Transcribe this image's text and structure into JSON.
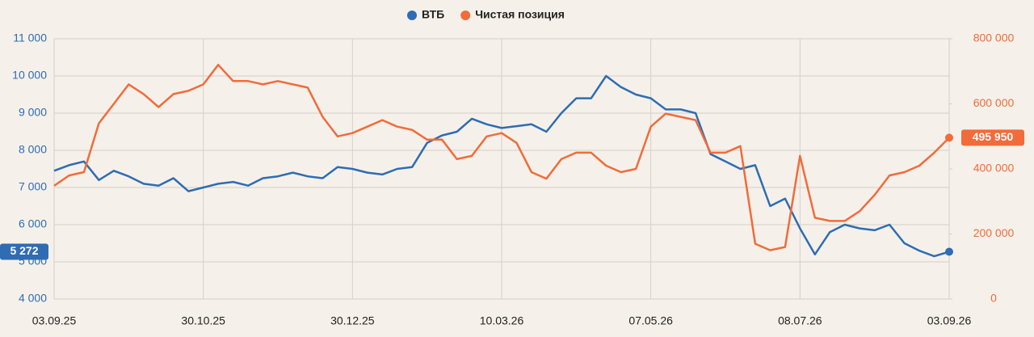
{
  "chart_data": {
    "type": "line",
    "legend": "top",
    "grid": true,
    "categories": [
      "03.09.25",
      null,
      null,
      null,
      null,
      null,
      null,
      null,
      null,
      null,
      "30.10.25",
      null,
      null,
      null,
      null,
      null,
      null,
      null,
      null,
      null,
      "30.12.25",
      null,
      null,
      null,
      null,
      null,
      null,
      null,
      null,
      null,
      "10.03.26",
      null,
      null,
      null,
      null,
      null,
      null,
      null,
      null,
      null,
      "07.05.26",
      null,
      null,
      null,
      null,
      null,
      null,
      null,
      null,
      null,
      "08.07.26",
      null,
      null,
      null,
      null,
      null,
      null,
      null,
      null,
      null,
      "03.09.26"
    ],
    "ylim": [
      4000,
      11000
    ],
    "yticks": [
      {
        "value": 4000,
        "label": "4 000"
      },
      {
        "value": 5000,
        "label": "5 000"
      },
      {
        "value": 6000,
        "label": "6 000"
      },
      {
        "value": 7000,
        "label": "7 000"
      },
      {
        "value": 8000,
        "label": "8 000"
      },
      {
        "value": 9000,
        "label": "9 000"
      },
      {
        "value": 10000,
        "label": "10 000"
      },
      {
        "value": 11000,
        "label": "11 000"
      }
    ],
    "y2lim": [
      0,
      800000
    ],
    "y2ticks": [
      0,
      {
        "value": 200000,
        "label": "200 000"
      },
      {
        "value": 400000,
        "label": "400 000"
      },
      {
        "value": 600000,
        "label": "600 000"
      },
      {
        "value": 800000,
        "label": "800 000"
      }
    ],
    "series": [
      {
        "name": "ВТБ",
        "color": "#2f6cb3",
        "axis": "y",
        "last_label": "5 272",
        "values": [
          7450,
          7600,
          7700,
          7200,
          7450,
          7300,
          7100,
          7050,
          7250,
          6900,
          7000,
          7100,
          7150,
          7050,
          7250,
          7300,
          7400,
          7300,
          7250,
          7550,
          7500,
          7400,
          7350,
          7500,
          7550,
          8200,
          8400,
          8500,
          8850,
          8700,
          8600,
          8650,
          8700,
          8500,
          9000,
          9400,
          9400,
          10000,
          9700,
          9500,
          9400,
          9100,
          9100,
          9000,
          7900,
          7700,
          7500,
          7600,
          6500,
          6700,
          5900,
          5200,
          5800,
          6000,
          5900,
          5850,
          6000,
          5500,
          5300,
          5150,
          5272
        ]
      },
      {
        "name": "Чистая позиция",
        "color": "#f26b3a",
        "axis": "y2",
        "last_label": "495 950",
        "values": [
          348000,
          380000,
          390000,
          540000,
          600000,
          660000,
          630000,
          590000,
          630000,
          640000,
          660000,
          720000,
          670000,
          670000,
          660000,
          670000,
          660000,
          650000,
          560000,
          500000,
          510000,
          530000,
          550000,
          530000,
          520000,
          490000,
          490000,
          430000,
          440000,
          500000,
          510000,
          480000,
          390000,
          370000,
          430000,
          450000,
          450000,
          410000,
          390000,
          400000,
          530000,
          570000,
          560000,
          550000,
          450000,
          450000,
          470000,
          170000,
          150000,
          160000,
          440000,
          250000,
          240000,
          240000,
          270000,
          320000,
          380000,
          390000,
          410000,
          450000,
          495950
        ]
      }
    ]
  }
}
